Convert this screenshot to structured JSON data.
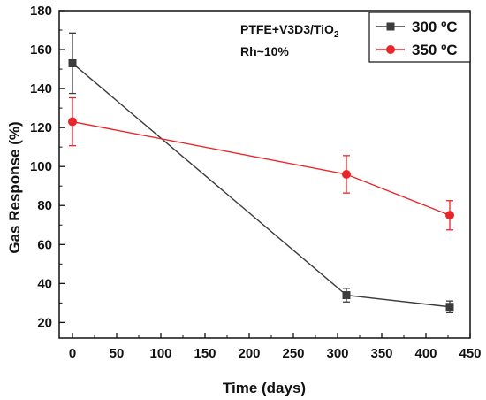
{
  "chart_data": {
    "type": "line",
    "xlabel": "Time (days)",
    "ylabel": "Gas Response (%)",
    "xlim": [
      -15,
      450
    ],
    "ylim": [
      12,
      180
    ],
    "xticks": [
      0,
      50,
      100,
      150,
      200,
      250,
      300,
      350,
      400,
      450
    ],
    "yticks": [
      20,
      40,
      60,
      80,
      100,
      120,
      140,
      160,
      180
    ],
    "annotations": [
      "PTFE+V3D3/TiO",
      "2",
      "Rh~10%"
    ],
    "legend_position": "top-right",
    "series": [
      {
        "name": "300 ºC",
        "color": "#3c3c3c",
        "marker": "square",
        "x": [
          0,
          310,
          427
        ],
        "y": [
          153,
          34,
          28
        ],
        "error": [
          15.5,
          3.5,
          3
        ]
      },
      {
        "name": "350 ºC",
        "color": "#e8262a",
        "marker": "circle",
        "x": [
          0,
          310,
          427
        ],
        "y": [
          123,
          96,
          75
        ],
        "error": [
          12.3,
          9.6,
          7.5
        ]
      }
    ]
  }
}
